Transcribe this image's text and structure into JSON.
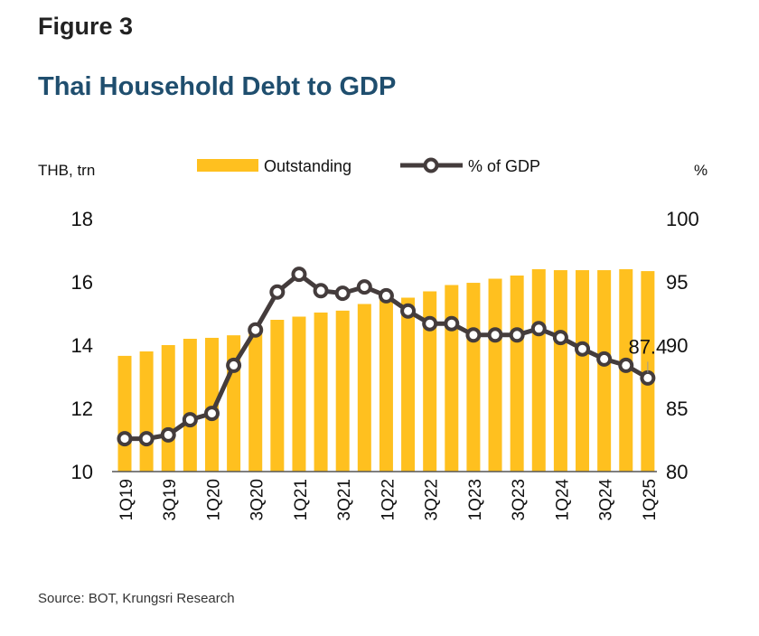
{
  "figure_label": "Figure 3",
  "title": "Thai Household Debt to GDP",
  "source": "Source: BOT, Krungsri Research",
  "chart_data": {
    "type": "bar+line",
    "categories": [
      "1Q19",
      "2Q19",
      "3Q19",
      "4Q19",
      "1Q20",
      "2Q20",
      "3Q20",
      "4Q20",
      "1Q21",
      "2Q21",
      "3Q21",
      "4Q21",
      "1Q22",
      "2Q22",
      "3Q22",
      "4Q22",
      "1Q23",
      "2Q23",
      "3Q23",
      "4Q23",
      "1Q24",
      "2Q24",
      "3Q24",
      "4Q24",
      "1Q25"
    ],
    "tick_labels": [
      "1Q19",
      "3Q19",
      "1Q20",
      "3Q20",
      "1Q21",
      "3Q21",
      "1Q22",
      "3Q22",
      "1Q23",
      "3Q23",
      "1Q24",
      "3Q24",
      "1Q25"
    ],
    "left_axis": {
      "label": "THB, trn",
      "range": [
        10,
        18
      ],
      "ticks": [
        "10",
        "12",
        "14",
        "16",
        "18"
      ]
    },
    "right_axis": {
      "label": "%",
      "range": [
        80,
        100
      ],
      "ticks": [
        "80",
        "85",
        "90",
        "95",
        "100"
      ]
    },
    "series": [
      {
        "name": "Outstanding",
        "type": "bar",
        "axis": "left",
        "color": "#FFC01F",
        "values": [
          13.66,
          13.8,
          14.0,
          14.2,
          14.23,
          14.31,
          14.6,
          14.8,
          14.9,
          15.03,
          15.09,
          15.3,
          15.43,
          15.5,
          15.7,
          15.9,
          15.97,
          16.1,
          16.2,
          16.4,
          16.37,
          16.37,
          16.37,
          16.4,
          16.34
        ]
      },
      {
        "name": "% of GDP",
        "type": "line",
        "axis": "right",
        "color": "#443C3C",
        "values": [
          82.6,
          82.6,
          82.9,
          84.1,
          84.6,
          88.4,
          91.2,
          94.2,
          95.6,
          94.3,
          94.1,
          94.6,
          93.9,
          92.7,
          91.7,
          91.7,
          90.8,
          90.8,
          90.8,
          91.3,
          90.6,
          89.7,
          88.9,
          88.4,
          87.4
        ]
      }
    ],
    "data_labels": [
      {
        "series": "% of GDP",
        "category": "1Q25",
        "text": "87.4"
      }
    ],
    "legend": "top",
    "grid": false
  }
}
